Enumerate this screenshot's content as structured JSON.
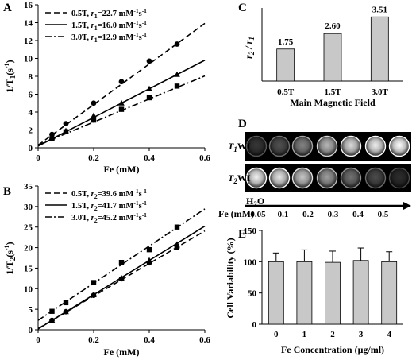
{
  "panel_labels": {
    "A": "A",
    "B": "B",
    "C": "C",
    "D": "D",
    "E": "E"
  },
  "chart_data": [
    {
      "id": "A",
      "type": "scatter",
      "xlabel": "Fe (mM)",
      "ylabel_main": "1/T",
      "ylabel_sub": "1",
      "ylabel_suffix": "(s",
      "ylabel_sup": "-1",
      "ylabel_close": ")",
      "xlim": [
        0,
        0.6
      ],
      "ylim": [
        0,
        16
      ],
      "xticks": [
        "0",
        "0.2",
        "0.4",
        "0.6"
      ],
      "yticks": [
        "0",
        "2",
        "4",
        "6",
        "8",
        "10",
        "12",
        "14",
        "16"
      ],
      "legend_position": "top-left",
      "series": [
        {
          "name": "0.5T, r1=22.7 mM-1s-1",
          "legend_field": "0.5T, ",
          "legend_r": "r",
          "legend_sub": "1",
          "legend_val": "=22.7 mM",
          "legend_sup": "-1",
          "legend_unit": "s",
          "legend_sup2": "-1",
          "line_style": "dash",
          "marker": "circle",
          "slope": 22.7,
          "intercept": 0.3,
          "x": [
            0.05,
            0.1,
            0.2,
            0.3,
            0.4,
            0.5
          ],
          "y": [
            1.5,
            2.7,
            5.0,
            7.4,
            9.7,
            11.6
          ]
        },
        {
          "name": "1.5T, r1=16.0 mM-1s-1",
          "legend_field": "1.5T, ",
          "legend_r": "r",
          "legend_sub": "1",
          "legend_val": "=16.0 mM",
          "legend_sup": "-1",
          "legend_unit": "s",
          "legend_sup2": "-1",
          "line_style": "solid",
          "marker": "triangle",
          "slope": 16.0,
          "intercept": 0.2,
          "x": [
            0.05,
            0.1,
            0.2,
            0.3,
            0.4,
            0.5
          ],
          "y": [
            1.2,
            1.9,
            3.6,
            5.0,
            6.6,
            8.2
          ]
        },
        {
          "name": "3.0T, r1=12.9 mM-1s-1",
          "legend_field": "3.0T, ",
          "legend_r": "r",
          "legend_sub": "1",
          "legend_val": "=12.9 mM",
          "legend_sup": "-1",
          "legend_unit": "s",
          "legend_sup2": "-1",
          "line_style": "dashdot",
          "marker": "square",
          "slope": 12.9,
          "intercept": 0.3,
          "x": [
            0.05,
            0.1,
            0.2,
            0.3,
            0.4,
            0.5
          ],
          "y": [
            1.0,
            1.8,
            3.1,
            4.3,
            5.6,
            6.9
          ]
        }
      ]
    },
    {
      "id": "B",
      "type": "scatter",
      "xlabel": "Fe (mM)",
      "ylabel_main": "1/T",
      "ylabel_sub": "2",
      "ylabel_suffix": "(s",
      "ylabel_sup": "-1",
      "ylabel_close": ")",
      "xlim": [
        0,
        0.6
      ],
      "ylim": [
        0,
        35
      ],
      "xticks": [
        "0",
        "0.2",
        "0.4",
        "0.6"
      ],
      "yticks": [
        "0",
        "5",
        "10",
        "15",
        "20",
        "25",
        "30",
        "35"
      ],
      "legend_position": "top-left",
      "series": [
        {
          "name": "0.5T, r2=39.6 mM-1s-1",
          "legend_field": "0.5T, ",
          "legend_r": "r",
          "legend_sub": "2",
          "legend_val": "=39.6 mM",
          "legend_sup": "-1",
          "legend_unit": "s",
          "legend_sup2": "-1",
          "line_style": "dash",
          "marker": "circle",
          "slope": 39.6,
          "intercept": 0.3,
          "x": [
            0.05,
            0.1,
            0.2,
            0.3,
            0.4,
            0.5
          ],
          "y": [
            2.3,
            4.4,
            8.4,
            12.4,
            16.3,
            20.0
          ]
        },
        {
          "name": "1.5T, r2=41.7 mM-1s-1",
          "legend_field": "1.5T, ",
          "legend_r": "r",
          "legend_sub": "2",
          "legend_val": "=41.7 mM",
          "legend_sup": "-1",
          "legend_unit": "s",
          "legend_sup2": "-1",
          "line_style": "solid",
          "marker": "triangle",
          "slope": 41.7,
          "intercept": 0.2,
          "x": [
            0.05,
            0.1,
            0.2,
            0.3,
            0.4,
            0.5
          ],
          "y": [
            2.3,
            4.4,
            8.5,
            12.6,
            16.9,
            20.8
          ]
        },
        {
          "name": "3.0T, r2=45.2 mM-1s-1",
          "legend_field": "3.0T, ",
          "legend_r": "r",
          "legend_sub": "2",
          "legend_val": "=45.2 mM",
          "legend_sup": "-1",
          "legend_unit": "s",
          "legend_sup2": "-1",
          "line_style": "dashdot",
          "marker": "square",
          "slope": 45.2,
          "intercept": 2.3,
          "x": [
            0.05,
            0.1,
            0.2,
            0.3,
            0.4,
            0.5
          ],
          "y": [
            4.5,
            6.6,
            11.5,
            16.4,
            19.5,
            25.0
          ]
        }
      ]
    },
    {
      "id": "C",
      "type": "bar",
      "xlabel": "Main Magnetic Field",
      "ylabel_main": "r",
      "ylabel_sub": "2",
      "ylabel_mid": " / r",
      "ylabel_sub2": "1",
      "categories": [
        "0.5T",
        "1.5T",
        "3.0T"
      ],
      "values": [
        1.75,
        2.6,
        3.51
      ],
      "data_labels": [
        "1.75",
        "2.60",
        "3.51"
      ],
      "ylim": [
        0,
        4
      ],
      "bar_color": "#c8c8c8"
    },
    {
      "id": "E",
      "type": "bar",
      "xlabel": "Fe Concentration (μg/ml)",
      "ylabel": "Cell Variability (%)",
      "categories": [
        "0",
        "1",
        "2",
        "3",
        "4"
      ],
      "values": [
        100,
        100,
        99,
        102,
        100
      ],
      "errors": [
        14,
        19,
        18,
        20,
        16
      ],
      "ylim": [
        0,
        150
      ],
      "yticks": [
        "0",
        "50",
        "100",
        "150"
      ],
      "bar_color": "#c8c8c8"
    }
  ],
  "mri": {
    "row_labels": [
      {
        "main": "T",
        "sub": "1",
        "suffix": "WI"
      },
      {
        "main": "T",
        "sub": "2",
        "suffix": "WI"
      }
    ],
    "water_label": "H",
    "water_sub": "2",
    "water_suffix": "O",
    "fe_label": "Fe (mM)",
    "concentrations": [
      "0.05",
      "0.1",
      "0.2",
      "0.3",
      "0.4",
      "0.5"
    ],
    "t1_intensity": [
      0.22,
      0.32,
      0.52,
      0.72,
      0.86,
      0.94,
      1.0
    ],
    "t2_intensity": [
      0.95,
      0.9,
      0.78,
      0.62,
      0.45,
      0.3,
      0.18
    ]
  }
}
